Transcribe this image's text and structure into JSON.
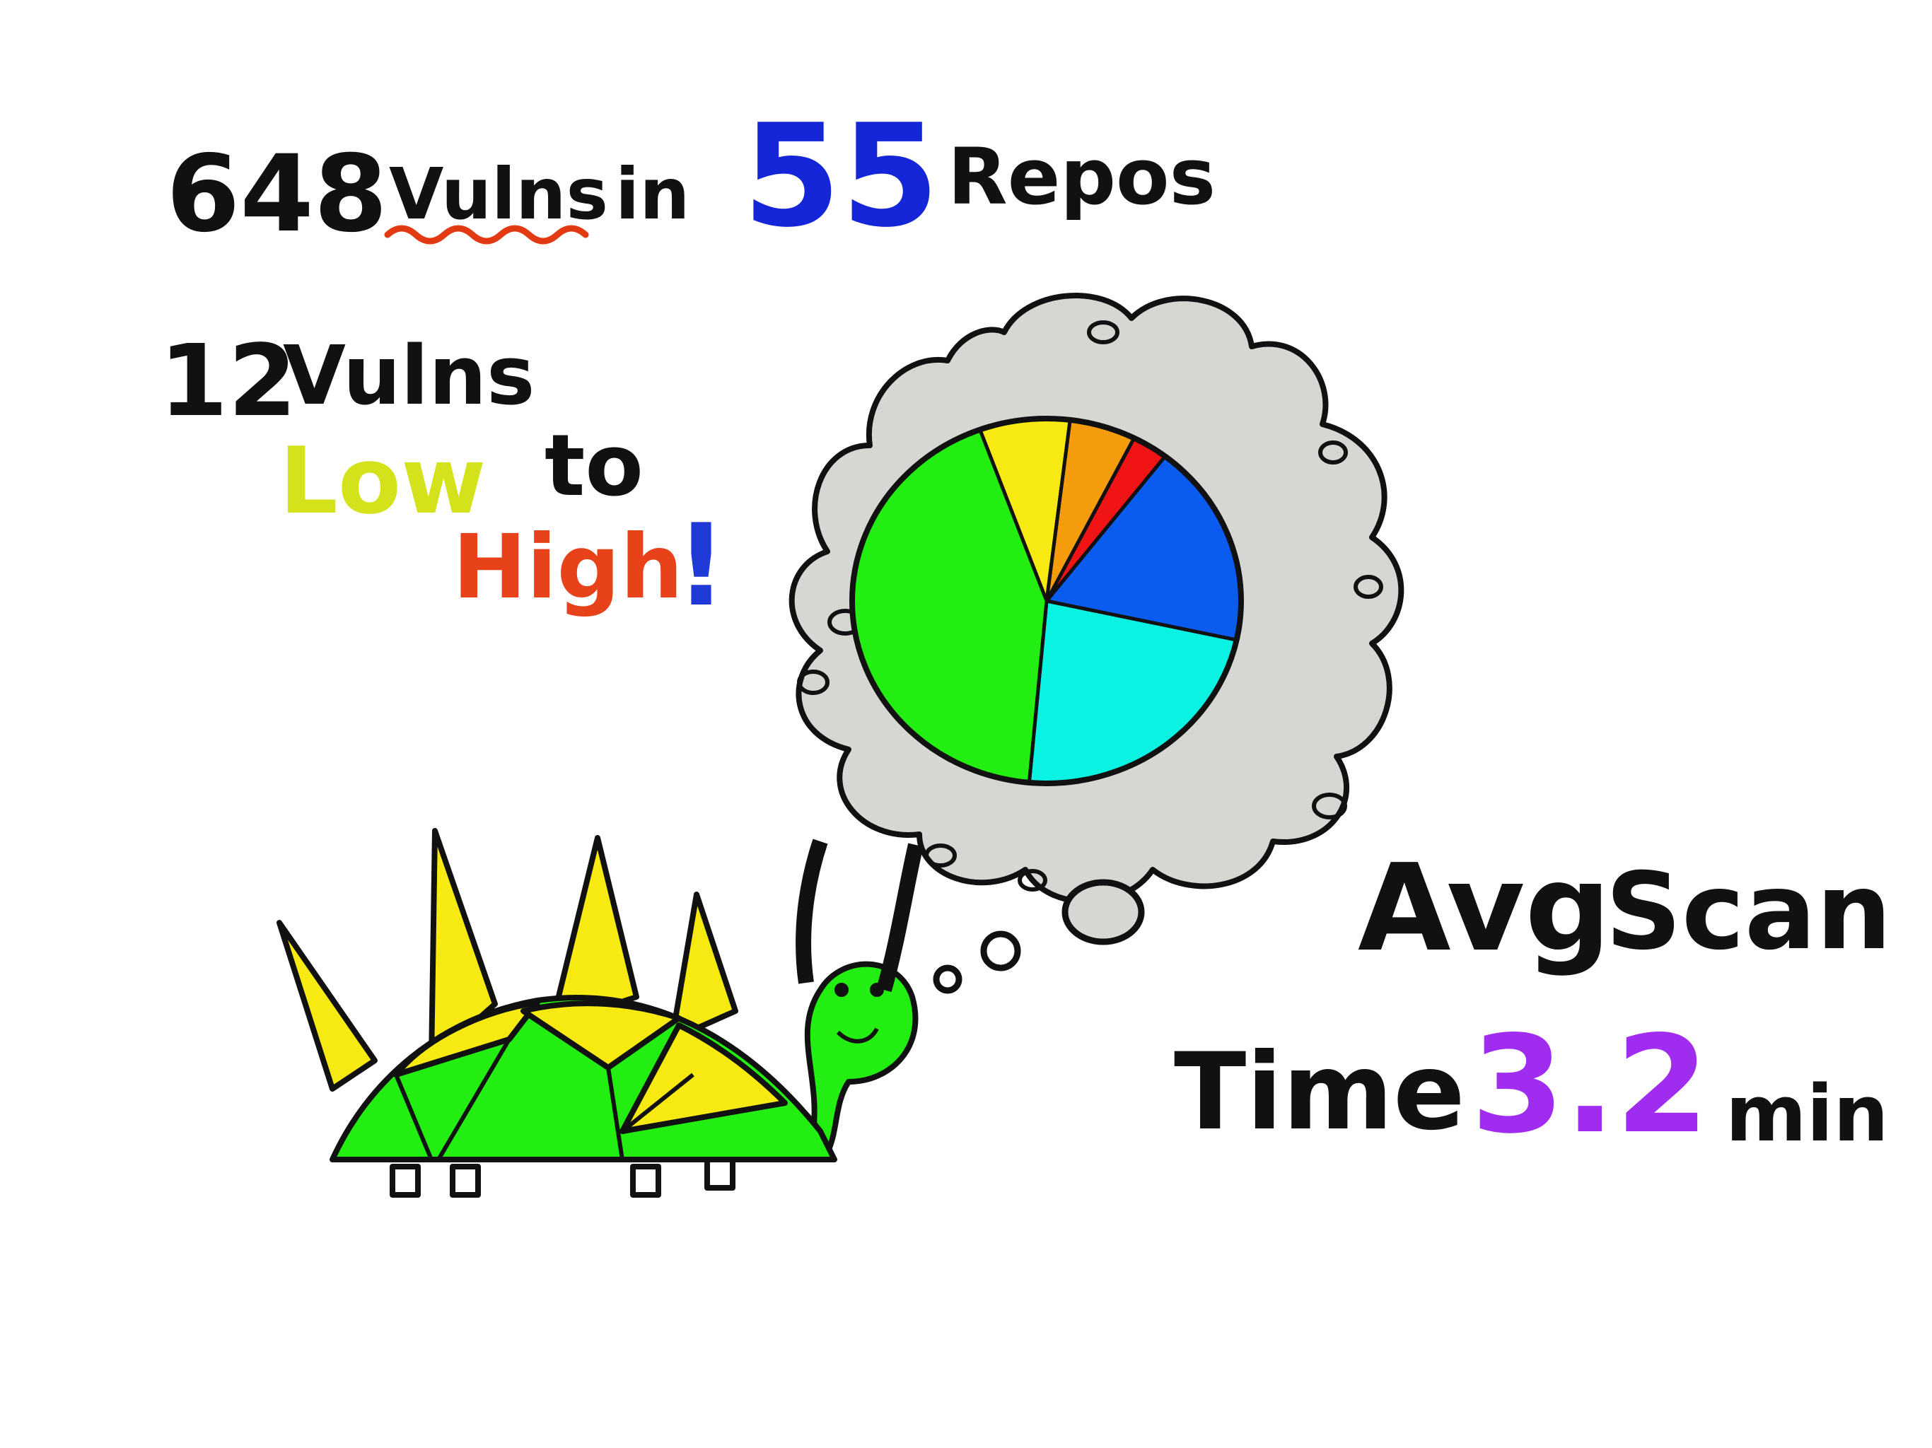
{
  "headline": {
    "vuln_count": "648",
    "vulns_word": "Vulns",
    "in_word": "in",
    "repo_count": "55",
    "repos_word": "Repos"
  },
  "subline": {
    "count": "12",
    "vulns_word": "Vulns",
    "low_word": "Low",
    "to_word": "to",
    "high_word": "High",
    "exclaim": "!"
  },
  "scan": {
    "avg_word": "Avg",
    "scan_word": "Scan",
    "time_word": "Time",
    "value": "3.2",
    "unit": "min"
  },
  "thought_dots": "..",
  "colors": {
    "ink": "#111111",
    "blue_number": "#1426d8",
    "low": "#d3e21a",
    "high": "#e8421a",
    "exclaim": "#1f3ad6",
    "scan_value": "#a02cf0",
    "squiggle": "#e23a12",
    "cloud": "#d6d6d2",
    "turtle_green": "#22ee11",
    "spike_yellow": "#f7ea12"
  },
  "chart_data": {
    "type": "pie",
    "slices": [
      {
        "color": "#f7ea12",
        "value": 7.5
      },
      {
        "color": "#f59c0c",
        "value": 5.5
      },
      {
        "color": "#f01414",
        "value": 3
      },
      {
        "color": "#0a5cf0",
        "value": 18
      },
      {
        "color": "#0af2e2",
        "value": 23
      },
      {
        "color": "#22ee11",
        "value": 43
      }
    ]
  }
}
